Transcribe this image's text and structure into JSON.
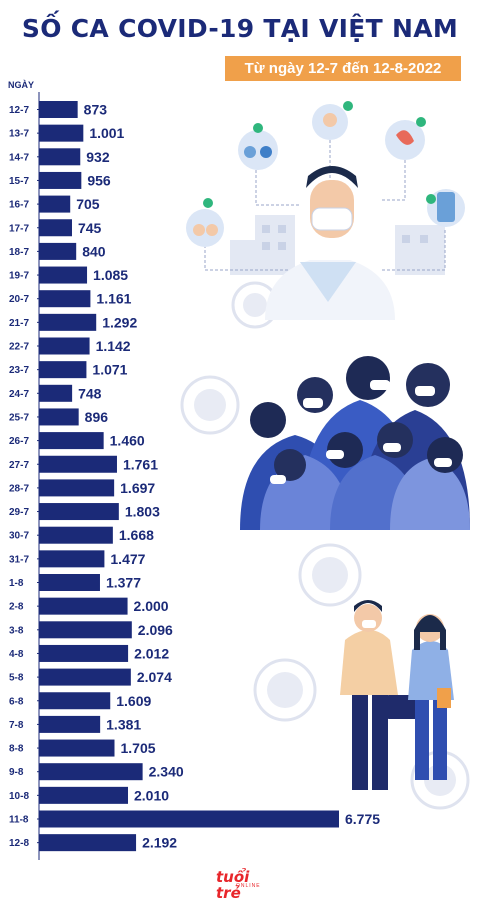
{
  "header": {
    "title": "SỐ CA COVID-19 TẠI VIỆT NAM",
    "date_range": "Từ ngày 12-7 đến 12-8-2022"
  },
  "colors": {
    "bar": "#1b2a78",
    "title": "#1b2a78",
    "badge": "#f0a04a",
    "logo": "#e8262b"
  },
  "logo": {
    "main": "tuổi trẻ",
    "sub": "ONLINE"
  },
  "chart_data": {
    "type": "bar",
    "orientation": "horizontal",
    "title": "SỐ CA COVID-19 TẠI VIỆT NAM",
    "ylabel": "NGÀY",
    "xlabel": "",
    "grid": false,
    "categories": [
      "12-7",
      "13-7",
      "14-7",
      "15-7",
      "16-7",
      "17-7",
      "18-7",
      "19-7",
      "20-7",
      "21-7",
      "22-7",
      "23-7",
      "24-7",
      "25-7",
      "26-7",
      "27-7",
      "28-7",
      "29-7",
      "30-7",
      "31-7",
      "1-8",
      "2-8",
      "3-8",
      "4-8",
      "5-8",
      "6-8",
      "7-8",
      "8-8",
      "9-8",
      "10-8",
      "11-8",
      "12-8"
    ],
    "values": [
      873,
      1001,
      932,
      956,
      705,
      745,
      840,
      1085,
      1161,
      1292,
      1142,
      1071,
      748,
      896,
      1460,
      1761,
      1697,
      1803,
      1668,
      1477,
      1377,
      2000,
      2096,
      2012,
      2074,
      1609,
      1381,
      1705,
      2340,
      2010,
      6775,
      2192
    ],
    "value_labels": [
      "873",
      "1.001",
      "932",
      "956",
      "705",
      "745",
      "840",
      "1.085",
      "1.161",
      "1.292",
      "1.142",
      "1.071",
      "748",
      "896",
      "1.460",
      "1.761",
      "1.697",
      "1.803",
      "1.668",
      "1.477",
      "1.377",
      "2.000",
      "2.096",
      "2.012",
      "2.074",
      "1.609",
      "1.381",
      "1.705",
      "2.340",
      "2.010",
      "6.775",
      "2.192"
    ]
  }
}
